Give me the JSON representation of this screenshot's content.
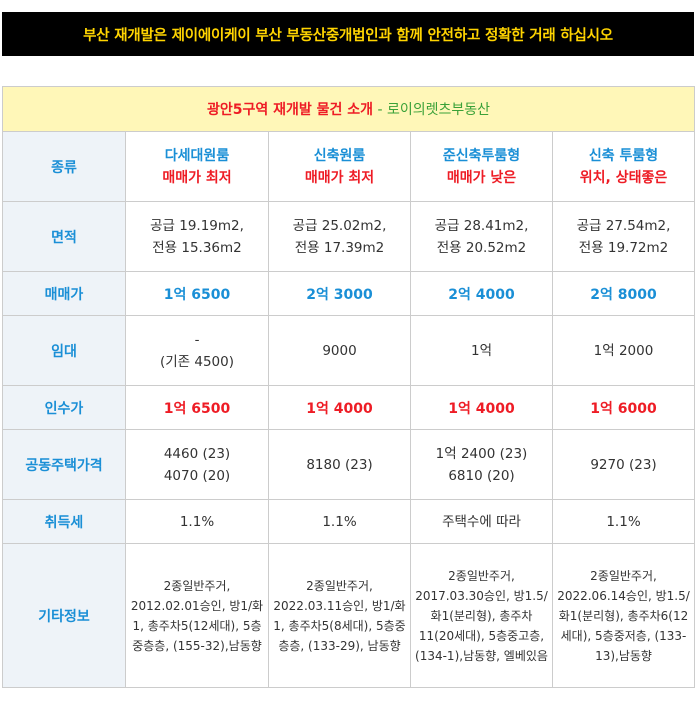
{
  "banner": "부산 재개발은 제이에이케이 부산 부동산중개법인과 함께 안전하고 정확한 거래 하십시오",
  "table_title": {
    "main": "광안5구역 재개발 물건 소개",
    "separator": " - ",
    "agency": "로이의렛츠부동산"
  },
  "row_labels": {
    "type": "종류",
    "area": "면적",
    "sale_price": "매매가",
    "lease": "임대",
    "takeover": "인수가",
    "public_price": "공동주택가격",
    "acq_tax": "취득세",
    "other": "기타정보"
  },
  "listings": [
    {
      "type_name": "다세대원룸",
      "type_note": "매매가 최저",
      "area_supply": "공급 19.19m2,",
      "area_exclusive": "전용 15.36m2",
      "sale_price": "1억 6500",
      "lease_line1": "-",
      "lease_line2": "(기존 4500)",
      "takeover": "1억 6500",
      "public_price_line1": "4460 (23)",
      "public_price_line2": "4070 (20)",
      "acq_tax": "1.1%",
      "other_info": "2종일반주거, 2012.02.01승인, 방1/화1, 총주차5(12세대), 5층중층층, (155-32),남동향"
    },
    {
      "type_name": "신축원룸",
      "type_note": "매매가 최저",
      "area_supply": "공급 25.02m2,",
      "area_exclusive": "전용 17.39m2",
      "sale_price": "2억 3000",
      "lease_line1": "9000",
      "lease_line2": "",
      "takeover": "1억 4000",
      "public_price_line1": "8180 (23)",
      "public_price_line2": "",
      "acq_tax": "1.1%",
      "other_info": "2종일반주거, 2022.03.11승인, 방1/화1, 총주차5(8세대), 5층중층층, (133-29), 남동향"
    },
    {
      "type_name": "준신축투룸형",
      "type_note": "매매가 낮은",
      "area_supply": "공급 28.41m2,",
      "area_exclusive": "전용 20.52m2",
      "sale_price": "2억 4000",
      "lease_line1": "1억",
      "lease_line2": "",
      "takeover": "1억 4000",
      "public_price_line1": "1억 2400 (23)",
      "public_price_line2": "6810 (20)",
      "acq_tax": "주택수에 따라",
      "other_info": "2종일반주거, 2017.03.30승인, 방1.5/화1(분리형), 총주차11(20세대), 5층중고층, (134-1),남동향, 엘베있음"
    },
    {
      "type_name": "신축 투룸형",
      "type_note": "위치, 상태좋은",
      "area_supply": "공급 27.54m2,",
      "area_exclusive": "전용 19.72m2",
      "sale_price": "2억 8000",
      "lease_line1": "1억 2000",
      "lease_line2": "",
      "takeover": "1억 6000",
      "public_price_line1": "9270 (23)",
      "public_price_line2": "",
      "acq_tax": "1.1%",
      "other_info": "2종일반주거, 2022.06.14승인, 방1.5/화1(분리형), 총주차6(12세대), 5층중저층, (133-13),남동향"
    }
  ]
}
